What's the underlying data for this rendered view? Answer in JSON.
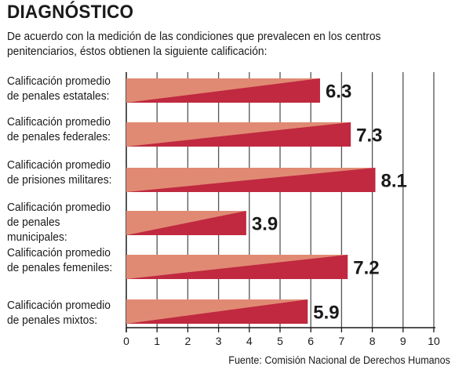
{
  "title": "DIAGNÓSTICO",
  "subtitle_lines": [
    "De acuerdo con la medición de las condiciones que prevalecen en los centros",
    "penitenciarios, éstos obtienen la siguiente calificación:"
  ],
  "source": "Fuente: Comisión Nacional de Derechos Humanos",
  "colors": {
    "bar_dark": "#c0293f",
    "bar_light": "#e08a74",
    "grid": "#555555",
    "axis": "#1a1a1a"
  },
  "chart_data": {
    "type": "bar",
    "orientation": "horizontal",
    "categories": [
      [
        "Calificación promedio",
        "de penales estatales:"
      ],
      [
        "Calificación promedio",
        "de penales federales:"
      ],
      [
        "Calificación promedio",
        "de prisiones militares:"
      ],
      [
        "Calificación promedio",
        "de penales",
        "municipales:"
      ],
      [
        "Calificación promedio",
        "de penales femeniles:"
      ],
      [
        "Calificación promedio",
        "de penales mixtos:"
      ]
    ],
    "values": [
      6.3,
      7.3,
      8.1,
      3.9,
      7.2,
      5.9
    ],
    "value_labels": [
      "6.3",
      "7.3",
      "8.1",
      "3.9",
      "7.2",
      "5.9"
    ],
    "xlim": [
      0,
      10
    ],
    "xticks": [
      "0",
      "1",
      "2",
      "3",
      "4",
      "5",
      "6",
      "7",
      "8",
      "9",
      "10"
    ],
    "grid": true
  }
}
